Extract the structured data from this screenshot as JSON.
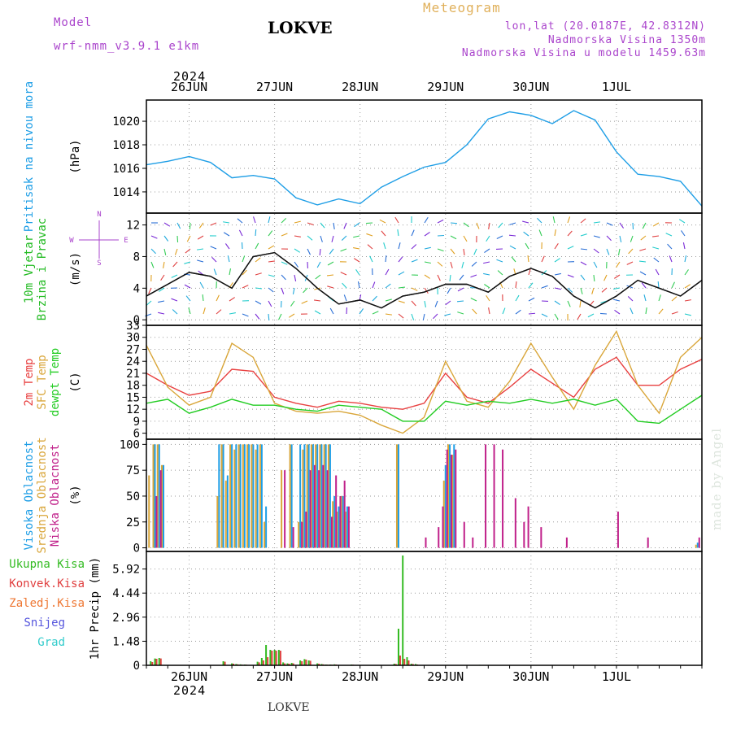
{
  "header": {
    "model_label": "Model",
    "model_name": "wrf-nmm_v3.9.1 e1km",
    "station": "LOKVE",
    "product": "Meteogram",
    "coords": "lon,lat (20.0187E, 42.8312N)",
    "elevation": "Nadmorska Visina 1350m",
    "model_elevation": "Nadmorska Visina u modelu 1459.63m",
    "year": "2024",
    "footer_station": "LOKVE",
    "credit": "made by Angel"
  },
  "colors": {
    "pressure": "#1e9ee6",
    "wind": "#22bb22",
    "temp_2m": "#e84040",
    "temp_sfc": "#d9a63a",
    "dewpoint": "#22cc22",
    "cloud_high": "#1e9ee6",
    "cloud_mid": "#d9a63a",
    "cloud_low": "#c0208a",
    "precip_total": "#33bb22",
    "precip_conv": "#e04040",
    "precip_frz": "#ee7733",
    "snow": "#5555dd",
    "hail": "#33cccc",
    "axis_title_violet": "#aa44cc"
  },
  "time_axis": {
    "day_labels": [
      "26JUN",
      "27JUN",
      "28JUN",
      "29JUN",
      "30JUN",
      "1JUL"
    ]
  },
  "chart_data": [
    {
      "type": "line",
      "name": "pressure",
      "ylabel_lines": [
        "Pritisak na nivou mora"
      ],
      "unit": "(hPa)",
      "ylim": [
        1012.2,
        1021.8
      ],
      "yticks": [
        1014,
        1016,
        1018,
        1020
      ],
      "ytick_labels": [
        "1014",
        "1016",
        "1018",
        "1020"
      ],
      "x_days": [
        0.0,
        0.25,
        0.5,
        0.75,
        1.0,
        1.25,
        1.5,
        1.75,
        2.0,
        2.25,
        2.5,
        2.75,
        3.0,
        3.25,
        3.5,
        3.75,
        4.0,
        4.25,
        4.5,
        4.75,
        5.0,
        5.25,
        5.5,
        5.75,
        6.0,
        6.25,
        6.5
      ],
      "series": [
        {
          "key": "pressure",
          "values": [
            1016.3,
            1016.6,
            1017.0,
            1016.5,
            1015.2,
            1015.4,
            1015.1,
            1013.5,
            1012.9,
            1013.4,
            1013.0,
            1014.4,
            1015.3,
            1016.1,
            1016.5,
            1018.0,
            1020.2,
            1020.8,
            1020.5,
            1019.8,
            1020.9,
            1020.1,
            1017.4,
            1015.5,
            1015.3,
            1014.9,
            1012.8
          ]
        }
      ]
    },
    {
      "type": "line",
      "name": "wind",
      "ylabel_lines": [
        "10m Vjetar",
        "Brzina i Pravac"
      ],
      "unit": "(m/s)",
      "ylim": [
        -0.7,
        13.5
      ],
      "yticks": [
        0,
        4,
        8,
        12
      ],
      "ytick_labels": [
        "0",
        "4",
        "8",
        "12"
      ],
      "compass_labels": [
        "N",
        "E",
        "S",
        "W"
      ],
      "x_days": [
        0.0,
        0.25,
        0.5,
        0.75,
        1.0,
        1.25,
        1.5,
        1.75,
        2.0,
        2.25,
        2.5,
        2.75,
        3.0,
        3.25,
        3.5,
        3.75,
        4.0,
        4.25,
        4.5,
        4.75,
        5.0,
        5.25,
        5.5,
        5.75,
        6.0,
        6.25,
        6.5
      ],
      "series": [
        {
          "key": "wind",
          "values": [
            3.0,
            4.5,
            6.0,
            5.5,
            4.0,
            8.0,
            8.5,
            6.5,
            4.0,
            2.0,
            2.5,
            1.5,
            3.0,
            3.5,
            4.5,
            4.5,
            3.5,
            5.5,
            6.5,
            5.5,
            3.0,
            1.5,
            3.0,
            5.0,
            4.0,
            3.0,
            5.0
          ]
        }
      ]
    },
    {
      "type": "line",
      "name": "temperature",
      "ylabel_lines": [
        "2m Temp",
        "SFC Temp",
        "dewpt Temp"
      ],
      "unit": "(C)",
      "ylim": [
        4.5,
        33.0
      ],
      "yticks": [
        6,
        9,
        12,
        15,
        18,
        21,
        24,
        27,
        30,
        33
      ],
      "ytick_labels": [
        "6",
        "9",
        "12",
        "15",
        "18",
        "21",
        "24",
        "27",
        "30",
        "33"
      ],
      "x_days": [
        0.0,
        0.25,
        0.5,
        0.75,
        1.0,
        1.25,
        1.5,
        1.75,
        2.0,
        2.25,
        2.5,
        2.75,
        3.0,
        3.25,
        3.5,
        3.75,
        4.0,
        4.25,
        4.5,
        4.75,
        5.0,
        5.25,
        5.5,
        5.75,
        6.0,
        6.25,
        6.5
      ],
      "series": [
        {
          "key": "temp_2m",
          "values": [
            21.0,
            18.0,
            15.5,
            16.5,
            22.0,
            21.5,
            15.0,
            13.5,
            12.5,
            14.0,
            13.5,
            12.5,
            12.0,
            13.5,
            21.0,
            15.0,
            13.5,
            17.5,
            22.0,
            18.5,
            15.0,
            22.0,
            25.0,
            18.0,
            18.0,
            22.0,
            24.5
          ]
        },
        {
          "key": "temp_sfc",
          "values": [
            28.0,
            17.5,
            13.0,
            15.0,
            28.5,
            25.0,
            13.5,
            11.5,
            11.0,
            11.5,
            10.5,
            8.0,
            6.0,
            10.0,
            24.0,
            14.0,
            12.5,
            19.0,
            28.5,
            20.0,
            12.0,
            23.0,
            31.5,
            18.0,
            11.0,
            25.0,
            30.0
          ]
        },
        {
          "key": "dewpoint",
          "values": [
            13.5,
            14.5,
            11.0,
            12.5,
            14.5,
            13.0,
            13.0,
            12.0,
            11.5,
            13.0,
            12.5,
            12.0,
            9.0,
            9.0,
            14.0,
            13.0,
            14.0,
            13.5,
            14.5,
            13.5,
            14.5,
            13.0,
            14.5,
            9.0,
            8.5,
            12.0,
            15.5
          ]
        }
      ]
    },
    {
      "type": "bar",
      "name": "clouds",
      "ylabel_lines": [
        "Visoka Oblacnost",
        "Srednja Oblacnost",
        "Niska Oblacnost"
      ],
      "unit": "(%)",
      "ylim": [
        -3.5,
        105
      ],
      "yticks": [
        0,
        25,
        50,
        75,
        100
      ],
      "ytick_labels": [
        "0",
        "25",
        "50",
        "75",
        "100"
      ],
      "bar_days": [
        0.05,
        0.1,
        0.15,
        0.2,
        0.85,
        0.9,
        0.95,
        1.0,
        1.05,
        1.1,
        1.15,
        1.2,
        1.25,
        1.3,
        1.35,
        1.4,
        1.6,
        1.7,
        1.8,
        1.85,
        1.9,
        1.95,
        2.0,
        2.05,
        2.1,
        2.15,
        2.2,
        2.25,
        2.3,
        2.35,
        2.4,
        2.45,
        2.5,
        2.55,
        2.6,
        2.65,
        2.95,
        3.0,
        3.25,
        3.4,
        3.45,
        3.5,
        3.55,
        3.6,
        3.7,
        3.8,
        3.95,
        4.05,
        4.15,
        4.3,
        4.4,
        4.45,
        4.6,
        4.9,
        5.5,
        5.85,
        6.45
      ],
      "series": [
        {
          "key": "cloud_high",
          "values": [
            0,
            100,
            100,
            80,
            100,
            100,
            70,
            100,
            100,
            100,
            100,
            100,
            100,
            100,
            100,
            40,
            0,
            100,
            100,
            100,
            100,
            100,
            100,
            100,
            100,
            100,
            50,
            40,
            50,
            40,
            0,
            0,
            0,
            0,
            0,
            0,
            100,
            0,
            0,
            0,
            0,
            80,
            100,
            100,
            0,
            0,
            0,
            0,
            0,
            0,
            0,
            0,
            0,
            0,
            0,
            0,
            5
          ]
        },
        {
          "key": "cloud_mid",
          "values": [
            70,
            100,
            100,
            80,
            50,
            100,
            65,
            100,
            95,
            100,
            100,
            100,
            100,
            95,
            100,
            25,
            75,
            100,
            25,
            95,
            100,
            100,
            100,
            100,
            100,
            100,
            45,
            35,
            50,
            35,
            0,
            0,
            0,
            0,
            0,
            0,
            100,
            0,
            0,
            0,
            0,
            65,
            100,
            90,
            0,
            0,
            0,
            0,
            0,
            0,
            0,
            0,
            0,
            0,
            0,
            0,
            3
          ]
        },
        {
          "key": "cloud_low",
          "values": [
            0,
            50,
            75,
            0,
            0,
            0,
            0,
            0,
            0,
            0,
            0,
            0,
            0,
            0,
            0,
            0,
            75,
            20,
            25,
            35,
            75,
            80,
            75,
            80,
            75,
            30,
            70,
            50,
            65,
            40,
            0,
            0,
            0,
            0,
            0,
            0,
            0,
            0,
            10,
            20,
            40,
            95,
            90,
            95,
            25,
            10,
            100,
            100,
            95,
            48,
            25,
            40,
            20,
            10,
            35,
            10,
            10
          ]
        }
      ]
    },
    {
      "type": "bar",
      "name": "precipitation",
      "legend": [
        "Ukupna Kisa",
        "Konvek.Kisa",
        "Zaledj.Kisa",
        "Snijeg",
        "Grad"
      ],
      "ylabel_lines": [
        "1hr Precip (mm)"
      ],
      "unit": "",
      "ylim": [
        0,
        7.0
      ],
      "yticks": [
        0,
        1.48,
        2.96,
        4.44,
        5.92
      ],
      "ytick_labels": [
        "0",
        "1.48",
        "2.96",
        "4.44",
        "5.92"
      ],
      "bar_days": [
        0.05,
        0.1,
        0.15,
        0.9,
        1.0,
        1.05,
        1.1,
        1.15,
        1.3,
        1.35,
        1.4,
        1.45,
        1.5,
        1.55,
        1.6,
        1.65,
        1.7,
        1.8,
        1.85,
        1.9,
        2.0,
        2.05,
        2.1,
        2.15,
        2.2,
        2.4,
        2.9,
        2.95,
        3.0,
        3.05,
        3.1,
        3.15,
        3.9
      ],
      "series": [
        {
          "key": "precip_total",
          "values": [
            0.25,
            0.42,
            0.45,
            0.25,
            0.12,
            0.08,
            0.06,
            0.05,
            0.22,
            0.45,
            1.25,
            0.95,
            0.95,
            0.95,
            0.18,
            0.12,
            0.15,
            0.3,
            0.38,
            0.3,
            0.12,
            0.08,
            0.05,
            0.05,
            0.06,
            0.05,
            0.1,
            2.25,
            6.75,
            0.5,
            0.1,
            0.08,
            0.03
          ]
        },
        {
          "key": "precip_conv",
          "values": [
            0.2,
            0.4,
            0.42,
            0.22,
            0.1,
            0.06,
            0.04,
            0.04,
            0.18,
            0.3,
            0.5,
            0.9,
            0.9,
            0.9,
            0.12,
            0.1,
            0.12,
            0.25,
            0.35,
            0.28,
            0.1,
            0.06,
            0.04,
            0.04,
            0.05,
            0.04,
            0.08,
            0.6,
            0.4,
            0.3,
            0.08,
            0.05,
            0.02
          ]
        }
      ]
    }
  ]
}
